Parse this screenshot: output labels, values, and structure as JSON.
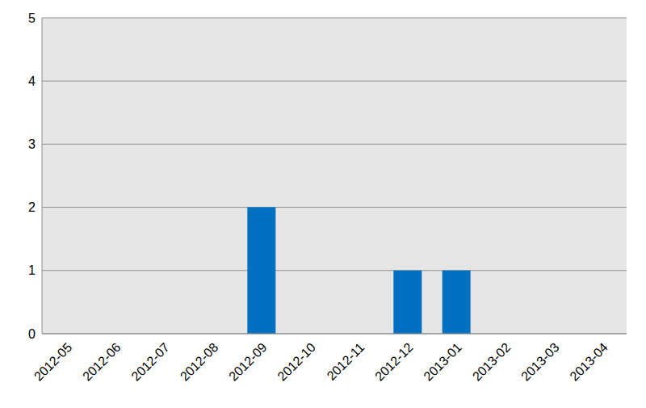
{
  "chart_data": {
    "type": "bar",
    "categories": [
      "2012-05",
      "2012-06",
      "2012-07",
      "2012-08",
      "2012-09",
      "2012-10",
      "2012-11",
      "2012-12",
      "2013-01",
      "2013-02",
      "2013-03",
      "2013-04"
    ],
    "values": [
      0,
      0,
      0,
      0,
      2,
      0,
      0,
      1,
      1,
      0,
      0,
      0
    ],
    "color": "#0070c0",
    "ylim": [
      0,
      5
    ],
    "yticks": [
      0,
      1,
      2,
      3,
      4,
      5
    ],
    "grid": true
  }
}
